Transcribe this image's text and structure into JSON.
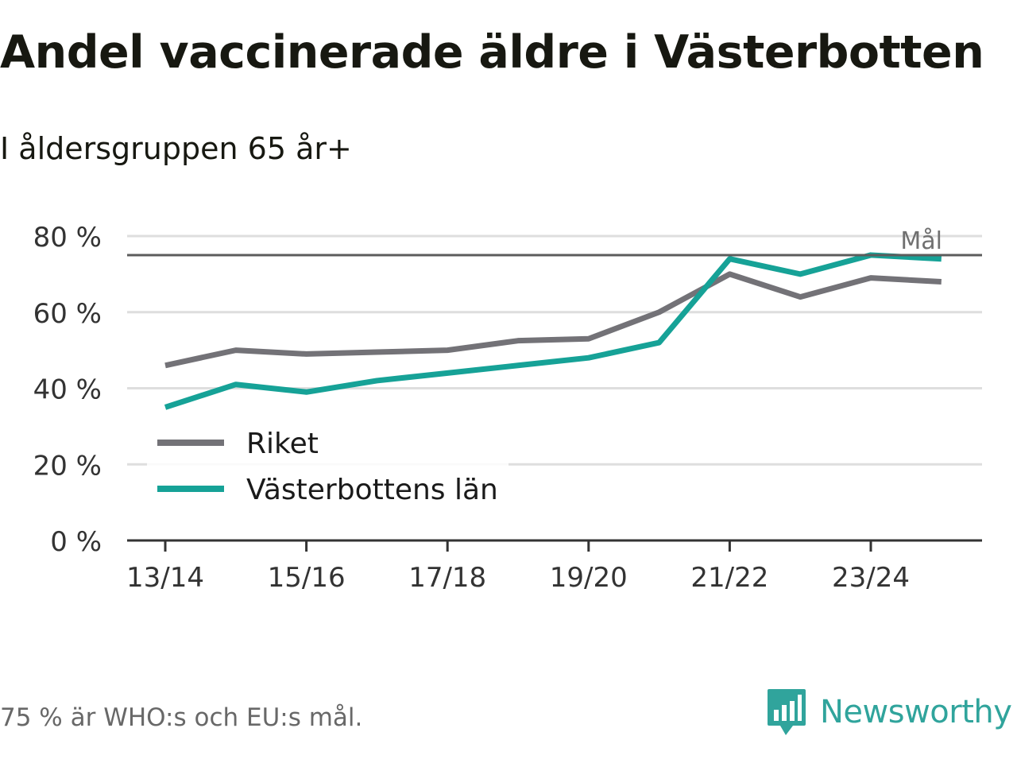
{
  "title": "Andel vaccinerade äldre i Västerbotten",
  "subtitle": "I åldersgruppen 65 år+",
  "footnote": "75 % är WHO:s och EU:s mål.",
  "brand": {
    "name": "Newsworthy",
    "icon": "newsworthy-logo-icon",
    "color": "#30a49c"
  },
  "chart_data": {
    "type": "line",
    "title": "",
    "xlabel": "",
    "ylabel": "",
    "x": [
      "13/14",
      "14/15",
      "15/16",
      "16/17",
      "17/18",
      "18/19",
      "19/20",
      "20/21",
      "21/22",
      "22/23",
      "23/24",
      "24/25"
    ],
    "x_tick_labels": [
      "13/14",
      "15/16",
      "17/18",
      "19/20",
      "21/22",
      "23/24"
    ],
    "ylim": [
      0,
      80
    ],
    "y_ticks": [
      0,
      20,
      40,
      60,
      80
    ],
    "y_tick_labels": [
      "0 %",
      "20 %",
      "40 %",
      "60 %",
      "80 %"
    ],
    "grid": true,
    "legend_position": "bottom-left",
    "series": [
      {
        "name": "Riket",
        "color": "#737277",
        "values": [
          46,
          50,
          49,
          49.5,
          50,
          52.5,
          53,
          60,
          70,
          64,
          69,
          68
        ]
      },
      {
        "name": "Västerbottens län",
        "color": "#16a297",
        "values": [
          35,
          41,
          39,
          42,
          44,
          46,
          48,
          52,
          74,
          70,
          75,
          74
        ]
      }
    ],
    "reference_line": {
      "value": 75,
      "label": "Mål",
      "color": "#5c5c5c"
    }
  }
}
